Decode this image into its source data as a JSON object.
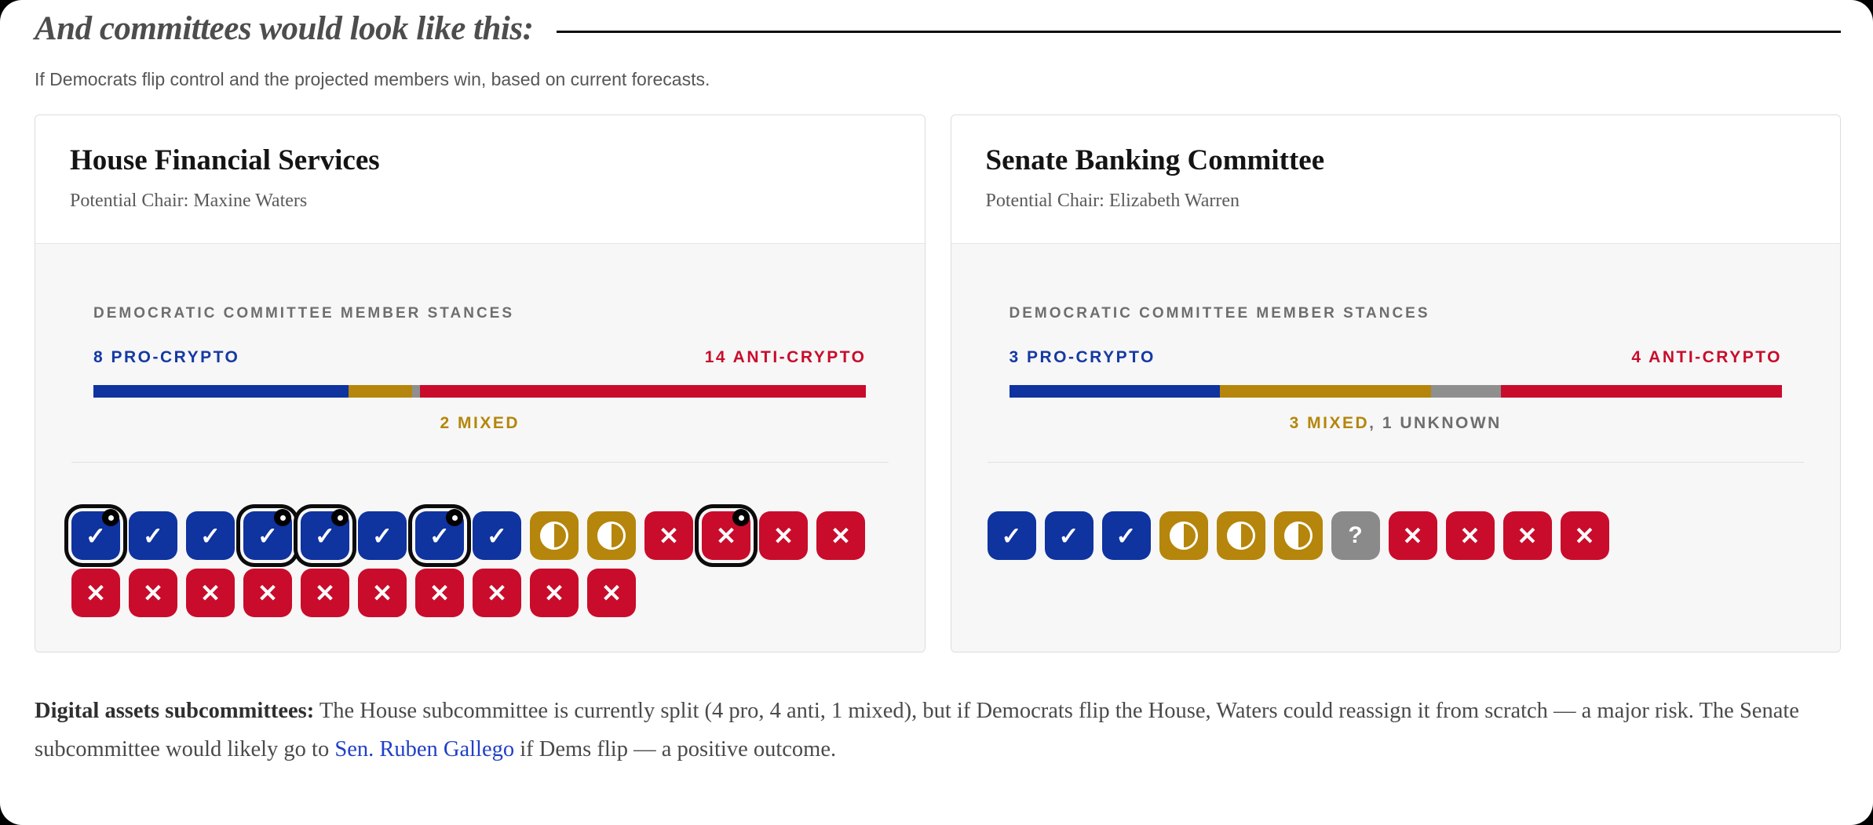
{
  "page": {
    "title": "And committees would look like this:",
    "subtitle": "If Democrats flip control and the projected members win, based on current forecasts."
  },
  "colors": {
    "pro": "#0f339f",
    "mixed": "#b5860b",
    "unknown": "#8a8a8a",
    "anti": "#c90c2b",
    "link": "#2140c8"
  },
  "icons": {
    "pro": "check-icon",
    "mixed": "half-circle-icon",
    "unknown": "question-icon",
    "anti": "x-icon",
    "highlight": "highlight-dot-badge"
  },
  "glyphs": {
    "pro": "✓",
    "anti": "✕",
    "unknown": "?"
  },
  "chart_data": [
    {
      "type": "stacked-bar",
      "title": "House Financial Services",
      "chair_label": "Potential Chair: Maxine Waters",
      "section_label": "DEMOCRATIC COMMITTEE MEMBER STANCES",
      "pro_label": "8 PRO-CRYPTO",
      "anti_label": "14 ANTI-CRYPTO",
      "mixed_caption": "2 MIXED",
      "unknown_caption": "",
      "total_members": 24,
      "counts": {
        "pro": 8,
        "mixed": 2,
        "unknown": 0,
        "anti": 14
      },
      "segment_order": [
        "pro",
        "mixed",
        "unknown",
        "anti"
      ],
      "members": [
        {
          "stance": "pro",
          "highlighted": true
        },
        {
          "stance": "pro",
          "highlighted": false
        },
        {
          "stance": "pro",
          "highlighted": false
        },
        {
          "stance": "pro",
          "highlighted": true
        },
        {
          "stance": "pro",
          "highlighted": true
        },
        {
          "stance": "pro",
          "highlighted": false
        },
        {
          "stance": "pro",
          "highlighted": true
        },
        {
          "stance": "pro",
          "highlighted": false
        },
        {
          "stance": "mixed",
          "highlighted": false
        },
        {
          "stance": "mixed",
          "highlighted": false
        },
        {
          "stance": "anti",
          "highlighted": false
        },
        {
          "stance": "anti",
          "highlighted": true
        },
        {
          "stance": "anti",
          "highlighted": false
        },
        {
          "stance": "anti",
          "highlighted": false
        },
        {
          "stance": "anti",
          "highlighted": false
        },
        {
          "stance": "anti",
          "highlighted": false
        },
        {
          "stance": "anti",
          "highlighted": false
        },
        {
          "stance": "anti",
          "highlighted": false
        },
        {
          "stance": "anti",
          "highlighted": false
        },
        {
          "stance": "anti",
          "highlighted": false
        },
        {
          "stance": "anti",
          "highlighted": false
        },
        {
          "stance": "anti",
          "highlighted": false
        },
        {
          "stance": "anti",
          "highlighted": false
        },
        {
          "stance": "anti",
          "highlighted": false
        }
      ]
    },
    {
      "type": "stacked-bar",
      "title": "Senate Banking Committee",
      "chair_label": "Potential Chair: Elizabeth Warren",
      "section_label": "DEMOCRATIC COMMITTEE MEMBER STANCES",
      "pro_label": "3 PRO-CRYPTO",
      "anti_label": "4 ANTI-CRYPTO",
      "mixed_caption": "3 MIXED",
      "unknown_caption": ", 1 UNKNOWN",
      "total_members": 11,
      "counts": {
        "pro": 3,
        "mixed": 3,
        "unknown": 1,
        "anti": 4
      },
      "segment_order": [
        "pro",
        "mixed",
        "unknown",
        "anti"
      ],
      "members": [
        {
          "stance": "pro",
          "highlighted": false
        },
        {
          "stance": "pro",
          "highlighted": false
        },
        {
          "stance": "pro",
          "highlighted": false
        },
        {
          "stance": "mixed",
          "highlighted": false
        },
        {
          "stance": "mixed",
          "highlighted": false
        },
        {
          "stance": "mixed",
          "highlighted": false
        },
        {
          "stance": "unknown",
          "highlighted": false
        },
        {
          "stance": "anti",
          "highlighted": false
        },
        {
          "stance": "anti",
          "highlighted": false
        },
        {
          "stance": "anti",
          "highlighted": false
        },
        {
          "stance": "anti",
          "highlighted": false
        }
      ]
    }
  ],
  "footer": {
    "bold": "Digital assets subcommittees:",
    "text1": " The House subcommittee is currently split (4 pro, 4 anti, 1 mixed), but if Democrats flip the House, Waters could reassign it from scratch — a major risk. The Senate subcommittee would likely go to ",
    "link": "Sen. Ruben Gallego",
    "text2": " if Dems flip — a positive outcome."
  }
}
